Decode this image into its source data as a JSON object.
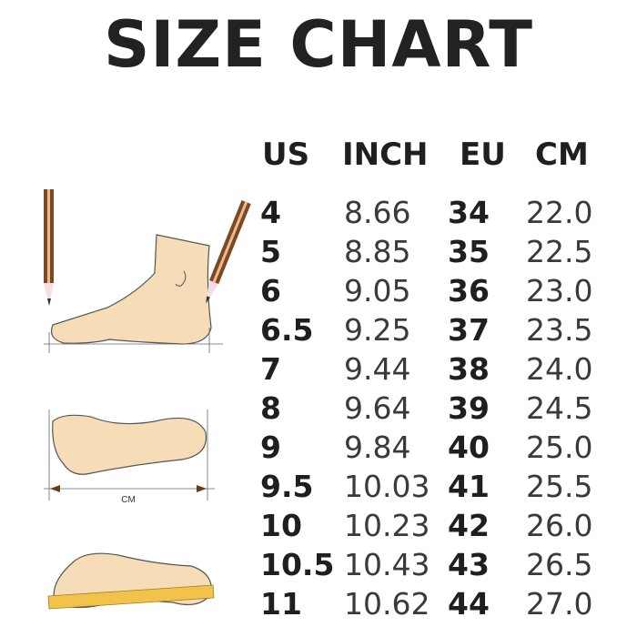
{
  "title": "SIZE CHART",
  "columns": [
    "US",
    "INCH",
    "EU",
    "CM"
  ],
  "rows": [
    [
      "4",
      "8.66",
      "34",
      "22.0"
    ],
    [
      "5",
      "8.85",
      "35",
      "22.5"
    ],
    [
      "6",
      "9.05",
      "36",
      "23.0"
    ],
    [
      "6.5",
      "9.25",
      "37",
      "23.5"
    ],
    [
      "7",
      "9.44",
      "38",
      "24.0"
    ],
    [
      "8",
      "9.64",
      "39",
      "24.5"
    ],
    [
      "9",
      "9.84",
      "40",
      "25.0"
    ],
    [
      "9.5",
      "10.03",
      "41",
      "25.5"
    ],
    [
      "10",
      "10.23",
      "42",
      "26.0"
    ],
    [
      "10.5",
      "10.43",
      "43",
      "26.5"
    ],
    [
      "11",
      "10.62",
      "44",
      "27.0"
    ]
  ],
  "illustration": {
    "measure_label": "CM",
    "skin_color": "#f7dcb8",
    "pencil_color": "#7a4a25",
    "ruler_color": "#f2c24b"
  }
}
